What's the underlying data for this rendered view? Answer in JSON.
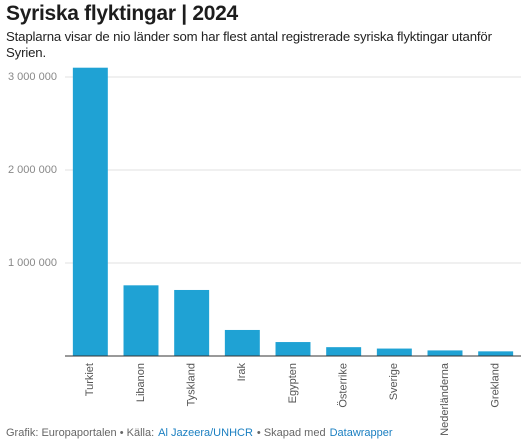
{
  "chart_data": {
    "type": "bar",
    "title": "Syriska flyktingar | 2024",
    "subtitle": "Staplarna visar de nio länder som har flest antal registrerade syriska flyktingar utanför Syrien.",
    "categories": [
      "Turkiet",
      "Libanon",
      "Tyskland",
      "Irak",
      "Egypten",
      "Österrike",
      "Sverige",
      "Nederländerna",
      "Grekland"
    ],
    "values": [
      3100000,
      760000,
      710000,
      280000,
      150000,
      95000,
      80000,
      60000,
      50000
    ],
    "color": "#1fa2d4",
    "ylim": [
      0,
      3000000
    ],
    "yticks": [
      {
        "value": 1000000,
        "label": "1 000 000"
      },
      {
        "value": 2000000,
        "label": "2 000 000"
      },
      {
        "value": 3000000,
        "label": "3 000 000"
      }
    ],
    "grid": true,
    "footer": {
      "credit": "Grafik: Europaportalen • Källa:",
      "source": "Al Jazeera/UNHCR",
      "made": "• Skapad med",
      "tool": "Datawrapper"
    }
  }
}
